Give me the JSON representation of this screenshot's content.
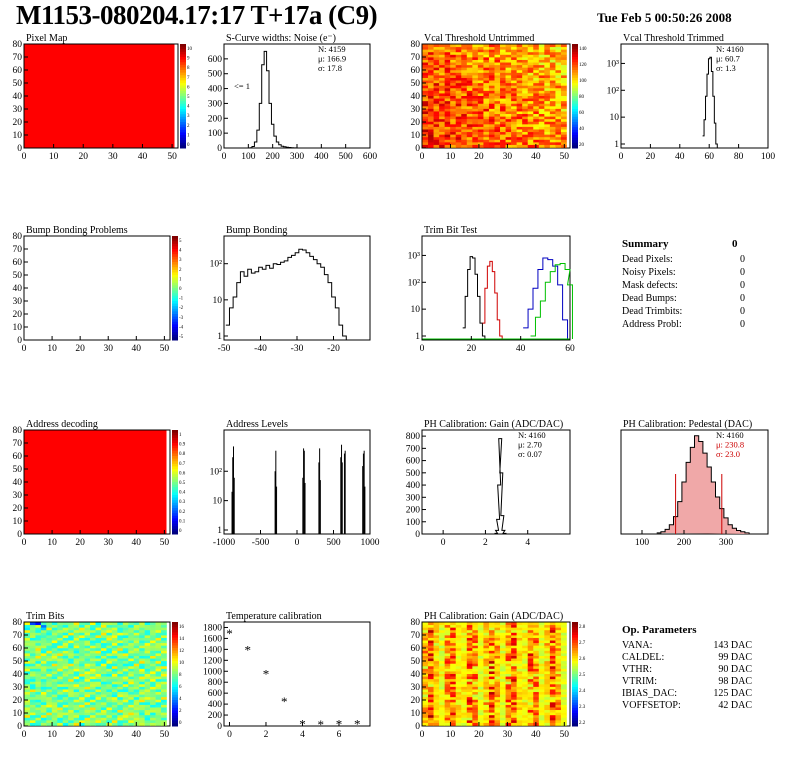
{
  "header": {
    "title": "M1153-080204.17:17 T+17a (C9)",
    "date": "Tue Feb  5 00:50:26 2008"
  },
  "colors": {
    "red": "#ff0000",
    "histogram": "#000000",
    "trim_red": "#d00000",
    "trim_blue": "#0000c0",
    "trim_green": "#00c000",
    "stat_red": "#cc0000",
    "pedestal_fill": "#f0a8a8"
  },
  "chart_data": [
    {
      "id": "pixel-map",
      "type": "heatmap",
      "title": "Pixel Map",
      "xlim": [
        0,
        52
      ],
      "ylim": [
        0,
        80
      ],
      "xticks": [
        "0",
        "10",
        "20",
        "30",
        "40",
        "50"
      ],
      "yticks": [
        "0",
        "10",
        "20",
        "30",
        "40",
        "50",
        "60",
        "70",
        "80"
      ],
      "colorbar_ticks": [
        "10",
        "9",
        "8",
        "7",
        "6",
        "5",
        "4",
        "3",
        "2",
        "1",
        "0"
      ],
      "fill": "uniform-max"
    },
    {
      "id": "scurve",
      "type": "bar",
      "title": "S-Curve widths: Noise (e⁻)",
      "xlim": [
        0,
        600
      ],
      "ylim": [
        0,
        700
      ],
      "xticks": [
        "0",
        "100",
        "200",
        "300",
        "400",
        "500",
        "600"
      ],
      "yticks": [
        "0",
        "100",
        "200",
        "300",
        "400",
        "500",
        "600"
      ],
      "stats": [
        "N: 4159",
        "μ: 166.9",
        "σ: 17.8"
      ],
      "underflow_label": "<= 1",
      "x": [
        110,
        120,
        130,
        140,
        150,
        160,
        170,
        180,
        190,
        200,
        210,
        220,
        230,
        240,
        250,
        260,
        270,
        280,
        290
      ],
      "values": [
        2,
        10,
        40,
        120,
        300,
        560,
        650,
        520,
        300,
        160,
        80,
        40,
        22,
        12,
        8,
        5,
        3,
        2,
        1
      ]
    },
    {
      "id": "vcal-untrimmed",
      "type": "heatmap",
      "title": "Vcal Threshold Untrimmed",
      "xlim": [
        0,
        52
      ],
      "ylim": [
        0,
        80
      ],
      "xticks": [
        "0",
        "10",
        "20",
        "30",
        "40",
        "50"
      ],
      "yticks": [
        "0",
        "10",
        "20",
        "30",
        "40",
        "50",
        "60",
        "70",
        "80"
      ],
      "colorbar_ticks": [
        "140",
        "120",
        "100",
        "80",
        "60",
        "40",
        "20"
      ]
    },
    {
      "id": "vcal-trimmed",
      "type": "bar",
      "title": "Vcal Threshold Trimmed",
      "xlim": [
        0,
        100
      ],
      "log": true,
      "xticks": [
        "0",
        "20",
        "40",
        "60",
        "80",
        "100"
      ],
      "yticks": [
        "1",
        "10",
        "10²",
        "10³"
      ],
      "stats": [
        "N: 4160",
        "μ: 60.7",
        "σ:  1.3"
      ],
      "x": [
        56,
        57,
        58,
        59,
        60,
        61,
        62,
        63,
        64,
        65
      ],
      "values": [
        2,
        8,
        60,
        400,
        1500,
        1700,
        500,
        60,
        6,
        1
      ]
    },
    {
      "id": "bump-problems",
      "type": "heatmap",
      "title": "Bump Bonding Problems",
      "xlim": [
        0,
        52
      ],
      "ylim": [
        0,
        80
      ],
      "xticks": [
        "0",
        "10",
        "20",
        "30",
        "40",
        "50"
      ],
      "yticks": [
        "0",
        "10",
        "20",
        "30",
        "40",
        "50",
        "60",
        "70",
        "80"
      ],
      "colorbar_ticks": [
        "5",
        "4",
        "3",
        "2",
        "1",
        "0",
        "-1",
        "-2",
        "-3",
        "-4",
        "-5"
      ],
      "fill": "empty"
    },
    {
      "id": "bump-bonding",
      "type": "bar",
      "title": "Bump Bonding",
      "xlim": [
        -50,
        -10
      ],
      "log": true,
      "xticks": [
        "-50",
        "-40",
        "-30",
        "-20"
      ],
      "yticks": [
        "1",
        "10",
        "10²"
      ],
      "x": [
        -49,
        -48,
        -47,
        -46,
        -45,
        -44,
        -43,
        -42,
        -41,
        -40,
        -39,
        -38,
        -37,
        -36,
        -35,
        -34,
        -33,
        -32,
        -31,
        -30,
        -29,
        -28,
        -27,
        -26,
        -25,
        -24,
        -23,
        -22,
        -21,
        -20,
        -19,
        -18,
        -17
      ],
      "values": [
        2,
        6,
        12,
        30,
        60,
        45,
        70,
        55,
        60,
        80,
        70,
        90,
        75,
        100,
        95,
        110,
        120,
        150,
        170,
        200,
        250,
        240,
        200,
        160,
        130,
        100,
        80,
        50,
        30,
        12,
        6,
        2,
        1
      ]
    },
    {
      "id": "trim-bit-test",
      "type": "line",
      "title": "Trim Bit Test",
      "xlim": [
        0,
        60
      ],
      "log": true,
      "xticks": [
        "0",
        "20",
        "40",
        "60"
      ],
      "yticks": [
        "1",
        "10",
        "10²",
        "10³"
      ],
      "series": [
        {
          "x": [
            17,
            18,
            19,
            20,
            21,
            22,
            23,
            24,
            25
          ],
          "values": [
            2,
            30,
            300,
            900,
            800,
            200,
            30,
            3,
            1
          ]
        },
        {
          "x": [
            25,
            26,
            27,
            28,
            29,
            30,
            31,
            32
          ],
          "values": [
            3,
            60,
            400,
            600,
            250,
            40,
            4,
            1
          ]
        },
        {
          "x": [
            42,
            44,
            46,
            48,
            50,
            52,
            54,
            56,
            58
          ],
          "values": [
            2,
            10,
            60,
            300,
            800,
            700,
            400,
            80,
            4
          ]
        },
        {
          "x": [
            45,
            47,
            49,
            51,
            53,
            55,
            57,
            59,
            60
          ],
          "values": [
            1,
            5,
            20,
            100,
            250,
            450,
            500,
            300,
            80
          ]
        }
      ]
    },
    {
      "id": "summary",
      "type": "table",
      "title": "Summary",
      "title_value": "0",
      "rows": [
        {
          "label": "Dead Pixels:",
          "value": "0"
        },
        {
          "label": "Noisy Pixels:",
          "value": "0"
        },
        {
          "label": "Mask defects:",
          "value": "0"
        },
        {
          "label": "Dead Bumps:",
          "value": "0"
        },
        {
          "label": "Dead Trimbits:",
          "value": "0"
        },
        {
          "label": "Address Probl:",
          "value": "0"
        }
      ]
    },
    {
      "id": "address-decoding",
      "type": "heatmap",
      "title": "Address decoding",
      "xlim": [
        0,
        52
      ],
      "ylim": [
        0,
        80
      ],
      "xticks": [
        "0",
        "10",
        "20",
        "30",
        "40",
        "50"
      ],
      "yticks": [
        "0",
        "10",
        "20",
        "30",
        "40",
        "50",
        "60",
        "70",
        "80"
      ],
      "colorbar_ticks": [
        "1",
        "0.9",
        "0.8",
        "0.7",
        "0.6",
        "0.5",
        "0.4",
        "0.3",
        "0.2",
        "0.1",
        "0"
      ],
      "fill": "uniform-max"
    },
    {
      "id": "address-levels",
      "type": "bar",
      "title": "Address Levels",
      "xlim": [
        -1000,
        1000
      ],
      "log": true,
      "xticks": [
        "-1000",
        "-500",
        "0",
        "500",
        "1000"
      ],
      "yticks": [
        "1",
        "10",
        "10²"
      ],
      "x": [
        -890,
        -880,
        -870,
        -860,
        -300,
        -290,
        -280,
        80,
        90,
        100,
        110,
        300,
        310,
        320,
        600,
        610,
        620,
        650,
        660,
        900,
        910,
        920,
        930
      ],
      "values": [
        20,
        300,
        700,
        60,
        100,
        500,
        30,
        60,
        600,
        500,
        40,
        200,
        600,
        50,
        300,
        800,
        200,
        400,
        500,
        150,
        400,
        500,
        30
      ]
    },
    {
      "id": "ph-gain",
      "type": "bar",
      "title": "PH Calibration: Gain (ADC/DAC)",
      "xlim": [
        -1,
        6
      ],
      "ylim": [
        0,
        850
      ],
      "xticks": [
        "0",
        "2",
        "4"
      ],
      "yticks": [
        "0",
        "100",
        "200",
        "300",
        "400",
        "500",
        "600",
        "700",
        "800"
      ],
      "stats": [
        "N: 4160",
        "μ: 2.70",
        "σ: 0.07"
      ],
      "x": [
        2.5,
        2.55,
        2.6,
        2.65,
        2.7,
        2.75,
        2.8,
        2.85,
        2.9
      ],
      "values": [
        5,
        30,
        120,
        400,
        780,
        500,
        150,
        30,
        5
      ]
    },
    {
      "id": "ph-pedestal",
      "type": "bar",
      "title": "PH Calibration: Pedestal (DAC)",
      "xlim": [
        50,
        400
      ],
      "ylim": [
        0,
        90
      ],
      "xticks": [
        "100",
        "200",
        "300"
      ],
      "stats": [
        "N: 4160",
        "μ: 230.8",
        "σ: 23.0"
      ],
      "cut_lines": [
        180,
        290
      ],
      "x": [
        140,
        150,
        160,
        170,
        180,
        190,
        200,
        210,
        220,
        230,
        240,
        250,
        260,
        270,
        280,
        290,
        300,
        310,
        320,
        330,
        340,
        350
      ],
      "values": [
        1,
        2,
        4,
        8,
        15,
        28,
        45,
        62,
        75,
        85,
        80,
        70,
        58,
        45,
        32,
        22,
        14,
        8,
        5,
        3,
        2,
        1
      ]
    },
    {
      "id": "trim-bits",
      "type": "heatmap",
      "title": "Trim Bits",
      "xlim": [
        0,
        52
      ],
      "ylim": [
        0,
        80
      ],
      "xticks": [
        "0",
        "10",
        "20",
        "30",
        "40",
        "50"
      ],
      "yticks": [
        "0",
        "10",
        "20",
        "30",
        "40",
        "50",
        "60",
        "70",
        "80"
      ],
      "colorbar_ticks": [
        "16",
        "14",
        "12",
        "10",
        "8",
        "6",
        "4",
        "2",
        "0"
      ]
    },
    {
      "id": "temperature",
      "type": "scatter",
      "title": "Temperature calibration",
      "xlim": [
        -0.3,
        7.7
      ],
      "ylim": [
        0,
        1900
      ],
      "xticks": [
        "0",
        "2",
        "4",
        "6"
      ],
      "yticks": [
        "0",
        "200",
        "400",
        "600",
        "800",
        "1000",
        "1200",
        "1400",
        "1600",
        "1800"
      ],
      "x": [
        0,
        1,
        2,
        3,
        4,
        5,
        6,
        7
      ],
      "values": [
        1700,
        1400,
        960,
        460,
        50,
        40,
        50,
        50
      ]
    },
    {
      "id": "ph-gain-map",
      "type": "heatmap",
      "title": "PH Calibration: Gain (ADC/DAC)",
      "xlim": [
        0,
        52
      ],
      "ylim": [
        0,
        80
      ],
      "xticks": [
        "0",
        "10",
        "20",
        "30",
        "40",
        "50"
      ],
      "yticks": [
        "0",
        "10",
        "20",
        "30",
        "40",
        "50",
        "60",
        "70",
        "80"
      ],
      "colorbar_ticks": [
        "2.8",
        "2.7",
        "2.6",
        "2.5",
        "2.4",
        "2.3",
        "2.2"
      ]
    },
    {
      "id": "op-params",
      "type": "table",
      "title": "Op. Parameters",
      "rows": [
        {
          "label": "VANA:",
          "value": "143 DAC"
        },
        {
          "label": "CALDEL:",
          "value": "99 DAC"
        },
        {
          "label": "VTHR:",
          "value": "90 DAC"
        },
        {
          "label": "VTRIM:",
          "value": "98 DAC"
        },
        {
          "label": "IBIAS_DAC:",
          "value": "125 DAC"
        },
        {
          "label": "VOFFSETOP:",
          "value": "42 DAC"
        }
      ]
    }
  ]
}
